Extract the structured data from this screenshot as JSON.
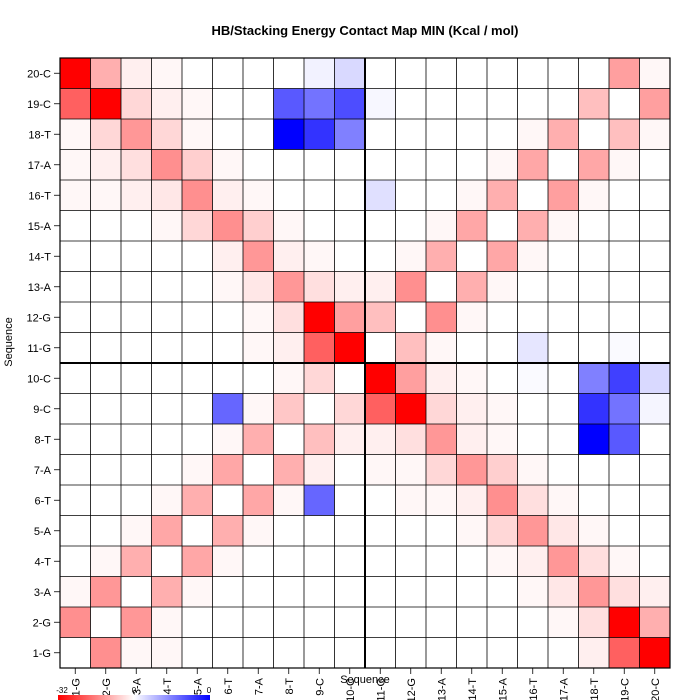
{
  "chart_data": {
    "type": "heatmap",
    "title": "HB/Stacking Energy Contact Map MIN (Kcal / mol)",
    "xlabel": "Sequence",
    "ylabel": "Sequence",
    "labels": [
      "1-G",
      "2-G",
      "3-A",
      "4-T",
      "5-A",
      "6-T",
      "7-A",
      "8-T",
      "9-C",
      "10-C",
      "11-G",
      "12-G",
      "13-A",
      "14-T",
      "15-A",
      "16-T",
      "17-A",
      "18-T",
      "19-C",
      "20-C"
    ],
    "colorbar": {
      "ticks": [
        "-32",
        "0",
        "0"
      ],
      "min_color": "#ff0000",
      "mid_color": "#ffffff",
      "max_color": "#0000ff"
    },
    "cell_values_note": "",
    "cells": [
      {
        "x": "1-G",
        "y": "20-C",
        "v": -32
      },
      {
        "x": "2-G",
        "y": "20-C",
        "v": -10
      },
      {
        "x": "3-A",
        "y": "20-C",
        "v": -2
      },
      {
        "x": "4-T",
        "y": "20-C",
        "v": -1
      },
      {
        "x": "9-C",
        "y": "20-C",
        "v": 0.05
      },
      {
        "x": "10-C",
        "y": "20-C",
        "v": 0.15
      },
      {
        "x": "19-C",
        "y": "20-C",
        "v": -12
      },
      {
        "x": "20-C",
        "y": "20-C",
        "v": -1
      },
      {
        "x": "1-G",
        "y": "19-C",
        "v": -20
      },
      {
        "x": "2-G",
        "y": "19-C",
        "v": -32
      },
      {
        "x": "3-A",
        "y": "19-C",
        "v": -5
      },
      {
        "x": "4-T",
        "y": "19-C",
        "v": -2
      },
      {
        "x": "5-A",
        "y": "19-C",
        "v": -1
      },
      {
        "x": "8-T",
        "y": "19-C",
        "v": 0.65
      },
      {
        "x": "9-C",
        "y": "19-C",
        "v": 0.55
      },
      {
        "x": "10-C",
        "y": "19-C",
        "v": 0.7
      },
      {
        "x": "11-G",
        "y": "19-C",
        "v": 0.03
      },
      {
        "x": "18-T",
        "y": "19-C",
        "v": -8
      },
      {
        "x": "20-C",
        "y": "19-C",
        "v": -12
      },
      {
        "x": "1-G",
        "y": "18-T",
        "v": -1
      },
      {
        "x": "2-G",
        "y": "18-T",
        "v": -5
      },
      {
        "x": "3-A",
        "y": "18-T",
        "v": -13
      },
      {
        "x": "4-T",
        "y": "18-T",
        "v": -5
      },
      {
        "x": "5-A",
        "y": "18-T",
        "v": -1
      },
      {
        "x": "8-T",
        "y": "18-T",
        "v": 1.0
      },
      {
        "x": "9-C",
        "y": "18-T",
        "v": 0.8
      },
      {
        "x": "10-C",
        "y": "18-T",
        "v": 0.5
      },
      {
        "x": "16-T",
        "y": "18-T",
        "v": -1
      },
      {
        "x": "17-A",
        "y": "18-T",
        "v": -10
      },
      {
        "x": "19-C",
        "y": "18-T",
        "v": -8
      },
      {
        "x": "20-C",
        "y": "18-T",
        "v": -1
      },
      {
        "x": "1-G",
        "y": "17-A",
        "v": -1
      },
      {
        "x": "2-G",
        "y": "17-A",
        "v": -2
      },
      {
        "x": "3-A",
        "y": "17-A",
        "v": -4
      },
      {
        "x": "4-T",
        "y": "17-A",
        "v": -14
      },
      {
        "x": "5-A",
        "y": "17-A",
        "v": -6
      },
      {
        "x": "6-T",
        "y": "17-A",
        "v": -1
      },
      {
        "x": "15-A",
        "y": "17-A",
        "v": -1
      },
      {
        "x": "16-T",
        "y": "17-A",
        "v": -11
      },
      {
        "x": "18-T",
        "y": "17-A",
        "v": -11
      },
      {
        "x": "19-C",
        "y": "17-A",
        "v": -1
      },
      {
        "x": "1-G",
        "y": "16-T",
        "v": -1
      },
      {
        "x": "2-G",
        "y": "16-T",
        "v": -1
      },
      {
        "x": "3-A",
        "y": "16-T",
        "v": -2
      },
      {
        "x": "4-T",
        "y": "16-T",
        "v": -3
      },
      {
        "x": "5-A",
        "y": "16-T",
        "v": -14
      },
      {
        "x": "6-T",
        "y": "16-T",
        "v": -2
      },
      {
        "x": "7-A",
        "y": "16-T",
        "v": -1
      },
      {
        "x": "11-G",
        "y": "16-T",
        "v": 0.12
      },
      {
        "x": "14-T",
        "y": "16-T",
        "v": -1
      },
      {
        "x": "15-A",
        "y": "16-T",
        "v": -10
      },
      {
        "x": "17-A",
        "y": "16-T",
        "v": -12
      },
      {
        "x": "18-T",
        "y": "16-T",
        "v": -1
      },
      {
        "x": "4-T",
        "y": "15-A",
        "v": -1
      },
      {
        "x": "5-A",
        "y": "15-A",
        "v": -5
      },
      {
        "x": "6-T",
        "y": "15-A",
        "v": -14
      },
      {
        "x": "7-A",
        "y": "15-A",
        "v": -6
      },
      {
        "x": "8-T",
        "y": "15-A",
        "v": -1
      },
      {
        "x": "13-A",
        "y": "15-A",
        "v": -1
      },
      {
        "x": "14-T",
        "y": "15-A",
        "v": -11
      },
      {
        "x": "16-T",
        "y": "15-A",
        "v": -10
      },
      {
        "x": "17-A",
        "y": "15-A",
        "v": -1
      },
      {
        "x": "6-T",
        "y": "14-T",
        "v": -2
      },
      {
        "x": "7-A",
        "y": "14-T",
        "v": -13
      },
      {
        "x": "8-T",
        "y": "14-T",
        "v": -2
      },
      {
        "x": "9-C",
        "y": "14-T",
        "v": -1
      },
      {
        "x": "12-G",
        "y": "14-T",
        "v": -1
      },
      {
        "x": "13-A",
        "y": "14-T",
        "v": -10
      },
      {
        "x": "15-A",
        "y": "14-T",
        "v": -11
      },
      {
        "x": "16-T",
        "y": "14-T",
        "v": -1
      },
      {
        "x": "6-T",
        "y": "13-A",
        "v": -1
      },
      {
        "x": "7-A",
        "y": "13-A",
        "v": -3
      },
      {
        "x": "8-T",
        "y": "13-A",
        "v": -13
      },
      {
        "x": "9-C",
        "y": "13-A",
        "v": -4
      },
      {
        "x": "10-C",
        "y": "13-A",
        "v": -2
      },
      {
        "x": "11-G",
        "y": "13-A",
        "v": -2
      },
      {
        "x": "12-G",
        "y": "13-A",
        "v": -14
      },
      {
        "x": "14-T",
        "y": "13-A",
        "v": -10
      },
      {
        "x": "15-A",
        "y": "13-A",
        "v": -1
      },
      {
        "x": "7-A",
        "y": "12-G",
        "v": -1
      },
      {
        "x": "8-T",
        "y": "12-G",
        "v": -4
      },
      {
        "x": "9-C",
        "y": "12-G",
        "v": -32
      },
      {
        "x": "10-C",
        "y": "12-G",
        "v": -12
      },
      {
        "x": "11-G",
        "y": "12-G",
        "v": -8
      },
      {
        "x": "13-A",
        "y": "12-G",
        "v": -14
      },
      {
        "x": "14-T",
        "y": "12-G",
        "v": -1
      },
      {
        "x": "7-A",
        "y": "11-G",
        "v": -1
      },
      {
        "x": "8-T",
        "y": "11-G",
        "v": -2
      },
      {
        "x": "9-C",
        "y": "11-G",
        "v": -20
      },
      {
        "x": "10-C",
        "y": "11-G",
        "v": -32
      },
      {
        "x": "12-G",
        "y": "11-G",
        "v": -8
      },
      {
        "x": "13-A",
        "y": "11-G",
        "v": -1
      },
      {
        "x": "16-T",
        "y": "11-G",
        "v": 0.1
      },
      {
        "x": "19-C",
        "y": "11-G",
        "v": 0.02
      },
      {
        "x": "8-T",
        "y": "10-C",
        "v": -1
      },
      {
        "x": "9-C",
        "y": "10-C",
        "v": -5
      },
      {
        "x": "11-G",
        "y": "10-C",
        "v": -32
      },
      {
        "x": "12-G",
        "y": "10-C",
        "v": -12
      },
      {
        "x": "13-A",
        "y": "10-C",
        "v": -2
      },
      {
        "x": "14-T",
        "y": "10-C",
        "v": -1
      },
      {
        "x": "16-T",
        "y": "10-C",
        "v": 0.02
      },
      {
        "x": "18-T",
        "y": "10-C",
        "v": 0.5
      },
      {
        "x": "19-C",
        "y": "10-C",
        "v": 0.75
      },
      {
        "x": "20-C",
        "y": "10-C",
        "v": 0.15
      },
      {
        "x": "6-T",
        "y": "9-C",
        "v": 0.6
      },
      {
        "x": "7-A",
        "y": "9-C",
        "v": -1
      },
      {
        "x": "8-T",
        "y": "9-C",
        "v": -7
      },
      {
        "x": "10-C",
        "y": "9-C",
        "v": -5
      },
      {
        "x": "11-G",
        "y": "9-C",
        "v": -20
      },
      {
        "x": "12-G",
        "y": "9-C",
        "v": -32
      },
      {
        "x": "13-A",
        "y": "9-C",
        "v": -5
      },
      {
        "x": "14-T",
        "y": "9-C",
        "v": -2
      },
      {
        "x": "15-A",
        "y": "9-C",
        "v": -1
      },
      {
        "x": "18-T",
        "y": "9-C",
        "v": 0.8
      },
      {
        "x": "19-C",
        "y": "9-C",
        "v": 0.55
      },
      {
        "x": "20-C",
        "y": "9-C",
        "v": 0.04
      },
      {
        "x": "6-T",
        "y": "8-T",
        "v": -1
      },
      {
        "x": "7-A",
        "y": "8-T",
        "v": -10
      },
      {
        "x": "9-C",
        "y": "8-T",
        "v": -8
      },
      {
        "x": "10-C",
        "y": "8-T",
        "v": -2
      },
      {
        "x": "11-G",
        "y": "8-T",
        "v": -2
      },
      {
        "x": "12-G",
        "y": "8-T",
        "v": -4
      },
      {
        "x": "13-A",
        "y": "8-T",
        "v": -13
      },
      {
        "x": "14-T",
        "y": "8-T",
        "v": -2
      },
      {
        "x": "15-A",
        "y": "8-T",
        "v": -1
      },
      {
        "x": "18-T",
        "y": "8-T",
        "v": 1.0
      },
      {
        "x": "19-C",
        "y": "8-T",
        "v": 0.65
      },
      {
        "x": "5-A",
        "y": "7-A",
        "v": -1
      },
      {
        "x": "6-T",
        "y": "7-A",
        "v": -11
      },
      {
        "x": "8-T",
        "y": "7-A",
        "v": -10
      },
      {
        "x": "9-C",
        "y": "7-A",
        "v": -2
      },
      {
        "x": "11-G",
        "y": "7-A",
        "v": -1
      },
      {
        "x": "12-G",
        "y": "7-A",
        "v": -1
      },
      {
        "x": "13-A",
        "y": "7-A",
        "v": -5
      },
      {
        "x": "14-T",
        "y": "7-A",
        "v": -13
      },
      {
        "x": "15-A",
        "y": "7-A",
        "v": -6
      },
      {
        "x": "16-T",
        "y": "7-A",
        "v": -1
      },
      {
        "x": "4-T",
        "y": "6-T",
        "v": -1
      },
      {
        "x": "5-A",
        "y": "6-T",
        "v": -10
      },
      {
        "x": "7-A",
        "y": "6-T",
        "v": -11
      },
      {
        "x": "8-T",
        "y": "6-T",
        "v": -1
      },
      {
        "x": "9-C",
        "y": "6-T",
        "v": 0.6
      },
      {
        "x": "12-G",
        "y": "6-T",
        "v": -1
      },
      {
        "x": "13-A",
        "y": "6-T",
        "v": -1
      },
      {
        "x": "14-T",
        "y": "6-T",
        "v": -2
      },
      {
        "x": "15-A",
        "y": "6-T",
        "v": -14
      },
      {
        "x": "16-T",
        "y": "6-T",
        "v": -4
      },
      {
        "x": "17-A",
        "y": "6-T",
        "v": -1
      },
      {
        "x": "3-A",
        "y": "5-A",
        "v": -1
      },
      {
        "x": "4-T",
        "y": "5-A",
        "v": -11
      },
      {
        "x": "6-T",
        "y": "5-A",
        "v": -10
      },
      {
        "x": "7-A",
        "y": "5-A",
        "v": -1
      },
      {
        "x": "14-T",
        "y": "5-A",
        "v": -1
      },
      {
        "x": "15-A",
        "y": "5-A",
        "v": -5
      },
      {
        "x": "16-T",
        "y": "5-A",
        "v": -13
      },
      {
        "x": "17-A",
        "y": "5-A",
        "v": -3
      },
      {
        "x": "18-T",
        "y": "5-A",
        "v": -1
      },
      {
        "x": "2-G",
        "y": "4-T",
        "v": -1
      },
      {
        "x": "3-A",
        "y": "4-T",
        "v": -10
      },
      {
        "x": "5-A",
        "y": "4-T",
        "v": -11
      },
      {
        "x": "6-T",
        "y": "4-T",
        "v": -1
      },
      {
        "x": "15-A",
        "y": "4-T",
        "v": -1
      },
      {
        "x": "16-T",
        "y": "4-T",
        "v": -2
      },
      {
        "x": "17-A",
        "y": "4-T",
        "v": -13
      },
      {
        "x": "18-T",
        "y": "4-T",
        "v": -4
      },
      {
        "x": "19-C",
        "y": "4-T",
        "v": -1
      },
      {
        "x": "1-G",
        "y": "3-A",
        "v": -1
      },
      {
        "x": "2-G",
        "y": "3-A",
        "v": -13
      },
      {
        "x": "4-T",
        "y": "3-A",
        "v": -10
      },
      {
        "x": "5-A",
        "y": "3-A",
        "v": -1
      },
      {
        "x": "16-T",
        "y": "3-A",
        "v": -1
      },
      {
        "x": "17-A",
        "y": "3-A",
        "v": -3
      },
      {
        "x": "18-T",
        "y": "3-A",
        "v": -13
      },
      {
        "x": "19-C",
        "y": "3-A",
        "v": -4
      },
      {
        "x": "20-C",
        "y": "3-A",
        "v": -2
      },
      {
        "x": "1-G",
        "y": "2-G",
        "v": -14
      },
      {
        "x": "3-A",
        "y": "2-G",
        "v": -13
      },
      {
        "x": "4-T",
        "y": "2-G",
        "v": -1
      },
      {
        "x": "17-A",
        "y": "2-G",
        "v": -1
      },
      {
        "x": "18-T",
        "y": "2-G",
        "v": -4
      },
      {
        "x": "19-C",
        "y": "2-G",
        "v": -32
      },
      {
        "x": "20-C",
        "y": "2-G",
        "v": -10
      },
      {
        "x": "2-G",
        "y": "1-G",
        "v": -14
      },
      {
        "x": "3-A",
        "y": "1-G",
        "v": -1
      },
      {
        "x": "4-T",
        "y": "1-G",
        "v": -1
      },
      {
        "x": "18-T",
        "y": "1-G",
        "v": -2
      },
      {
        "x": "19-C",
        "y": "1-G",
        "v": -20
      },
      {
        "x": "20-C",
        "y": "1-G",
        "v": -32
      }
    ]
  }
}
